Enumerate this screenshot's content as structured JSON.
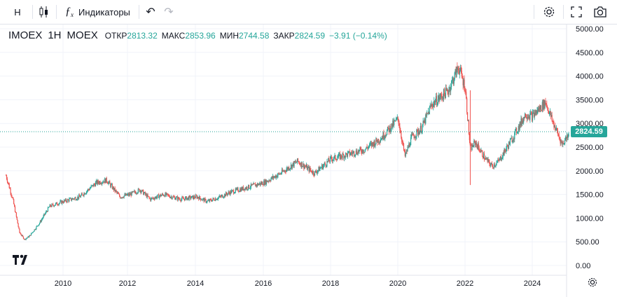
{
  "toolbar": {
    "interval": "Н",
    "indicators_label": "Индикаторы",
    "icons": [
      "candles-icon",
      "fx-icon",
      "undo-icon",
      "redo-icon",
      "gear-icon",
      "fullscreen-icon",
      "camera-icon"
    ]
  },
  "legend": {
    "symbol": "IMOEX",
    "interval": "1Н",
    "exchange": "MOEX",
    "open_label": "ОТКР",
    "open": "2813.32",
    "high_label": "МАКС",
    "high": "2853.96",
    "low_label": "МИН",
    "low": "2744.58",
    "close_label": "ЗАКР",
    "close": "2824.59",
    "change": "−3.91 (−0.14%)"
  },
  "price_tag": "2824.59",
  "colors": {
    "up": "#26a69a",
    "down": "#ef5350",
    "text": "#131722",
    "grid": "#f0f3fa"
  },
  "chart_data": {
    "type": "candlestick",
    "title": "IMOEX 1Н MOEX",
    "y_ticks": [
      "5000.00",
      "4500.00",
      "4000.00",
      "3500.00",
      "3000.00",
      "2500.00",
      "2000.00",
      "1500.00",
      "1000.00",
      "500.00",
      "0.00"
    ],
    "x_ticks": [
      "2010",
      "2012",
      "2014",
      "2016",
      "2018",
      "2020",
      "2022",
      "2024"
    ],
    "ylim": [
      0,
      5000
    ],
    "xlim": [
      2008.25,
      2025.2
    ],
    "last_price": 2824.59,
    "series": [
      {
        "name": "IMOEX",
        "x": [
          2008.3,
          2008.5,
          2008.7,
          2008.85,
          2009.0,
          2009.3,
          2009.6,
          2010.0,
          2010.5,
          2011.0,
          2011.3,
          2011.7,
          2012.0,
          2012.3,
          2012.6,
          2013.0,
          2013.5,
          2014.0,
          2014.3,
          2014.7,
          2015.0,
          2015.5,
          2016.0,
          2016.5,
          2017.0,
          2017.5,
          2018.0,
          2018.5,
          2019.0,
          2019.5,
          2020.0,
          2020.2,
          2020.4,
          2020.7,
          2021.0,
          2021.5,
          2021.8,
          2022.0,
          2022.15,
          2022.3,
          2022.6,
          2022.8,
          2023.0,
          2023.5,
          2023.8,
          2024.0,
          2024.4,
          2024.6,
          2024.9,
          2025.1
        ],
        "values": [
          1900,
          1400,
          700,
          550,
          620,
          900,
          1250,
          1350,
          1450,
          1750,
          1800,
          1450,
          1500,
          1600,
          1400,
          1500,
          1400,
          1450,
          1350,
          1450,
          1550,
          1650,
          1750,
          1950,
          2200,
          1950,
          2250,
          2350,
          2450,
          2700,
          3100,
          2300,
          2700,
          2900,
          3400,
          3700,
          4200,
          3750,
          2450,
          2600,
          2250,
          2100,
          2200,
          2800,
          3200,
          3150,
          3450,
          3050,
          2550,
          2825
        ]
      }
    ]
  }
}
